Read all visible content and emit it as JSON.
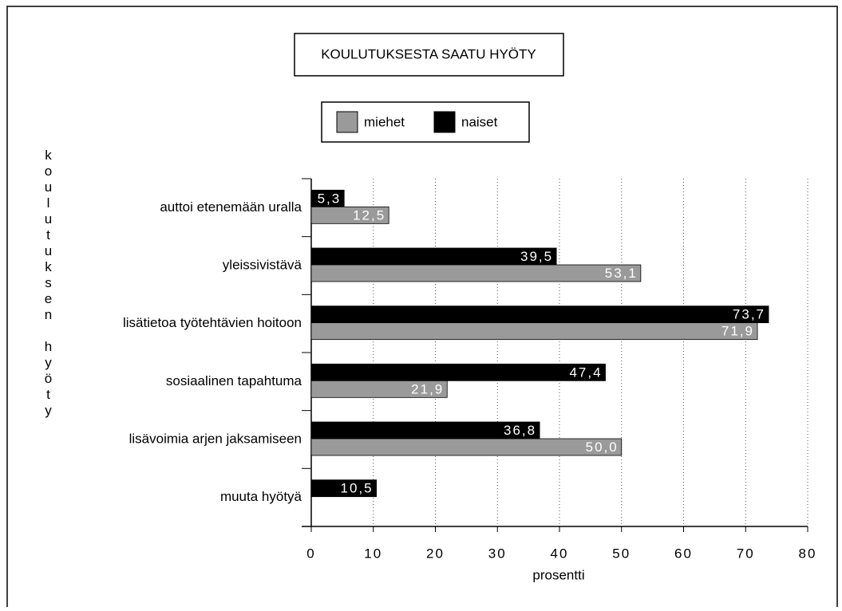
{
  "chart_data": {
    "type": "barh",
    "title": "KOULUTUKSESTA SAATU HYÖTY",
    "x_label": "prosentti",
    "y_label": "koulutuksen hyöty",
    "categories": [
      "auttoi etenemään uralla",
      "yleissivistävä",
      "lisätietoa työtehtävien hoitoon",
      "sosiaalinen tapahtuma",
      "lisävoimia arjen jaksamiseen",
      "muuta hyötyä"
    ],
    "series": [
      {
        "name": "miehet",
        "color": "#9a9a9a",
        "values": [
          12.5,
          53.1,
          71.9,
          21.9,
          50.0,
          null
        ],
        "value_labels": [
          "12,5",
          "53,1",
          "71,9",
          "21,9",
          "50,0",
          null
        ]
      },
      {
        "name": "naiset",
        "color": "#000000",
        "values": [
          5.3,
          39.5,
          73.7,
          47.4,
          36.8,
          10.5
        ],
        "value_labels": [
          "5,3",
          "39,5",
          "73,7",
          "47,4",
          "36,8",
          "10,5"
        ]
      }
    ],
    "xlim": [
      0,
      80
    ],
    "xticks": [
      0,
      10,
      20,
      30,
      40,
      50,
      60,
      70,
      80
    ],
    "grid": true,
    "legend": "top"
  }
}
